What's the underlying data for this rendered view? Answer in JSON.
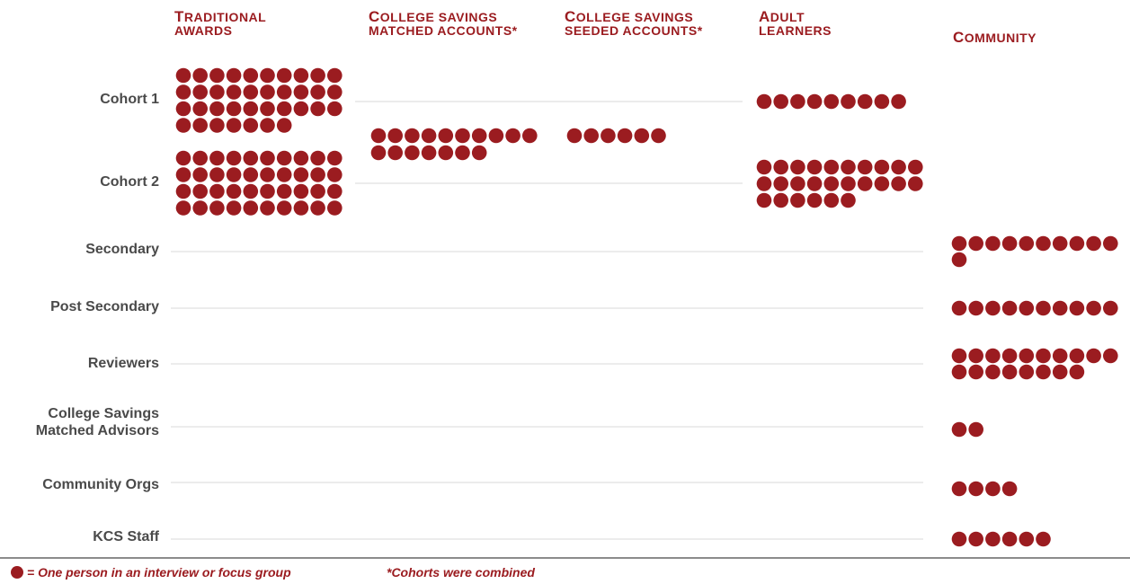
{
  "colors": {
    "dot": "#9b1c20",
    "label": "#4a4a4a",
    "rule": "#d9d9d9",
    "baseline": "#8c8c8c"
  },
  "icon": "filled-circle-icon",
  "columns": [
    {
      "first": "T",
      "rest": "raditional",
      "line2": "awards"
    },
    {
      "first": "C",
      "rest": "ollege savings",
      "line2": "matched accounts*"
    },
    {
      "first": "C",
      "rest": "ollege savings",
      "line2": "seeded accounts*"
    },
    {
      "first": "A",
      "rest": "dult",
      "line2": "learners"
    },
    {
      "first": "C",
      "rest": "ommunity",
      "line2": ""
    }
  ],
  "rows": [
    {
      "label": "Cohort 1"
    },
    {
      "label": "Cohort 2"
    },
    {
      "label": "Secondary"
    },
    {
      "label": "Post Secondary"
    },
    {
      "label": "Reviewers"
    },
    {
      "label1": "College Savings",
      "label2": "Matched Advisors"
    },
    {
      "label": "Community Orgs"
    },
    {
      "label": "KCS Staff"
    }
  ],
  "legend": {
    "dot_text": "= One person in an interview or focus group",
    "note": "*Cohorts were combined"
  },
  "chart_data": {
    "type": "pictogram",
    "unit": "One person in an interview or focus group",
    "categories": [
      "Traditional Awards",
      "College Savings Matched Accounts*",
      "College Savings Seeded Accounts*",
      "Adult Learners",
      "Community"
    ],
    "counts": [
      {
        "group": "Cohort 1",
        "column": "Traditional Awards",
        "value": 37
      },
      {
        "group": "Cohort 2",
        "column": "Traditional Awards",
        "value": 40
      },
      {
        "group": "Cohorts combined",
        "column": "College Savings Matched Accounts*",
        "value": 17
      },
      {
        "group": "Cohorts combined",
        "column": "College Savings Seeded Accounts*",
        "value": 6
      },
      {
        "group": "Cohort 1",
        "column": "Adult Learners",
        "value": 9
      },
      {
        "group": "Cohort 2",
        "column": "Adult Learners",
        "value": 26
      },
      {
        "group": "Secondary",
        "column": "Community",
        "value": 11
      },
      {
        "group": "Post Secondary",
        "column": "Community",
        "value": 10
      },
      {
        "group": "Reviewers",
        "column": "Community",
        "value": 18
      },
      {
        "group": "College Savings Matched Advisors",
        "column": "Community",
        "value": 2
      },
      {
        "group": "Community Orgs",
        "column": "Community",
        "value": 4
      },
      {
        "group": "KCS Staff",
        "column": "Community",
        "value": 6
      }
    ]
  }
}
